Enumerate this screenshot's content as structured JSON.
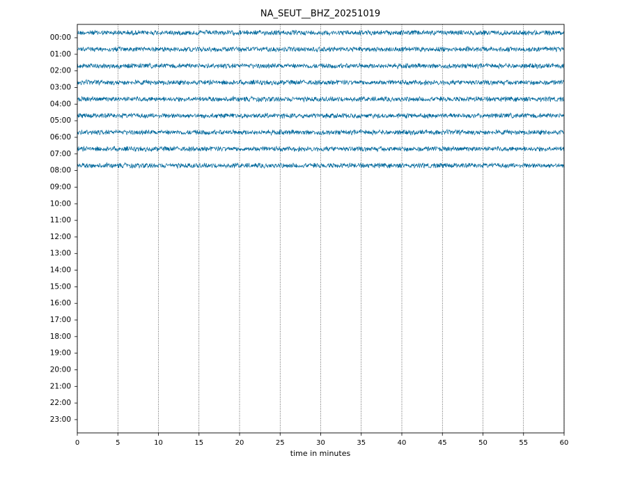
{
  "chart_data": {
    "type": "helicorder",
    "title": "NA_SEUT__BHZ_20251019",
    "xlabel": "time in minutes",
    "xlim": [
      0,
      60
    ],
    "xticks": [
      0,
      5,
      10,
      15,
      20,
      25,
      30,
      35,
      40,
      45,
      50,
      55,
      60
    ],
    "grid": true,
    "ylim": [
      23.8,
      -0.8
    ],
    "yticks": [
      {
        "value": 0,
        "label": "00:00"
      },
      {
        "value": 1,
        "label": "01:00"
      },
      {
        "value": 2,
        "label": "02:00"
      },
      {
        "value": 3,
        "label": "03:00"
      },
      {
        "value": 4,
        "label": "04:00"
      },
      {
        "value": 5,
        "label": "05:00"
      },
      {
        "value": 6,
        "label": "06:00"
      },
      {
        "value": 7,
        "label": "07:00"
      },
      {
        "value": 8,
        "label": "08:00"
      },
      {
        "value": 9,
        "label": "09:00"
      },
      {
        "value": 10,
        "label": "10:00"
      },
      {
        "value": 11,
        "label": "11:00"
      },
      {
        "value": 12,
        "label": "12:00"
      },
      {
        "value": 13,
        "label": "13:00"
      },
      {
        "value": 14,
        "label": "14:00"
      },
      {
        "value": 15,
        "label": "15:00"
      },
      {
        "value": 16,
        "label": "16:00"
      },
      {
        "value": 17,
        "label": "17:00"
      },
      {
        "value": 18,
        "label": "18:00"
      },
      {
        "value": 19,
        "label": "19:00"
      },
      {
        "value": 20,
        "label": "20:00"
      },
      {
        "value": 21,
        "label": "21:00"
      },
      {
        "value": 22,
        "label": "22:00"
      },
      {
        "value": 23,
        "label": "23:00"
      }
    ],
    "traces": {
      "color": "#00689c",
      "rows": [
        -0.3,
        0.7,
        1.7,
        2.7,
        3.7,
        4.7,
        5.7,
        6.7,
        7.7
      ],
      "amplitude": 0.17
    }
  }
}
